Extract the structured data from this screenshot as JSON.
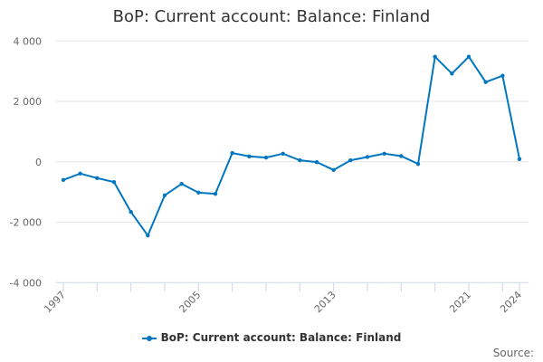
{
  "chart_data": {
    "type": "line",
    "title": "BoP: Current account: Balance: Finland",
    "x": [
      1997,
      1998,
      1999,
      2000,
      2001,
      2002,
      2003,
      2004,
      2005,
      2006,
      2007,
      2008,
      2009,
      2010,
      2011,
      2012,
      2013,
      2014,
      2015,
      2016,
      2017,
      2018,
      2019,
      2020,
      2021,
      2022,
      2023,
      2024
    ],
    "series": [
      {
        "name": "BoP: Current account: Balance: Finland",
        "color": "#0077c0",
        "values": [
          -600,
          -390,
          -540,
          -670,
          -1660,
          -2440,
          -1110,
          -730,
          -1020,
          -1060,
          290,
          180,
          140,
          270,
          50,
          -10,
          -270,
          50,
          160,
          270,
          190,
          -70,
          3480,
          2920,
          3480,
          2640,
          2850,
          90
        ]
      }
    ],
    "xticks": [
      1997,
      2005,
      2013,
      2021,
      2024
    ],
    "yticks": [
      4000,
      2000,
      0,
      -2000,
      -4000
    ],
    "ytick_labels": [
      "4 000",
      "2 000",
      "0",
      "-2 000",
      "-4 000"
    ],
    "ylim": [
      -4000,
      4000
    ],
    "grid": true,
    "legend": "bottom",
    "source_label": "Source:"
  }
}
